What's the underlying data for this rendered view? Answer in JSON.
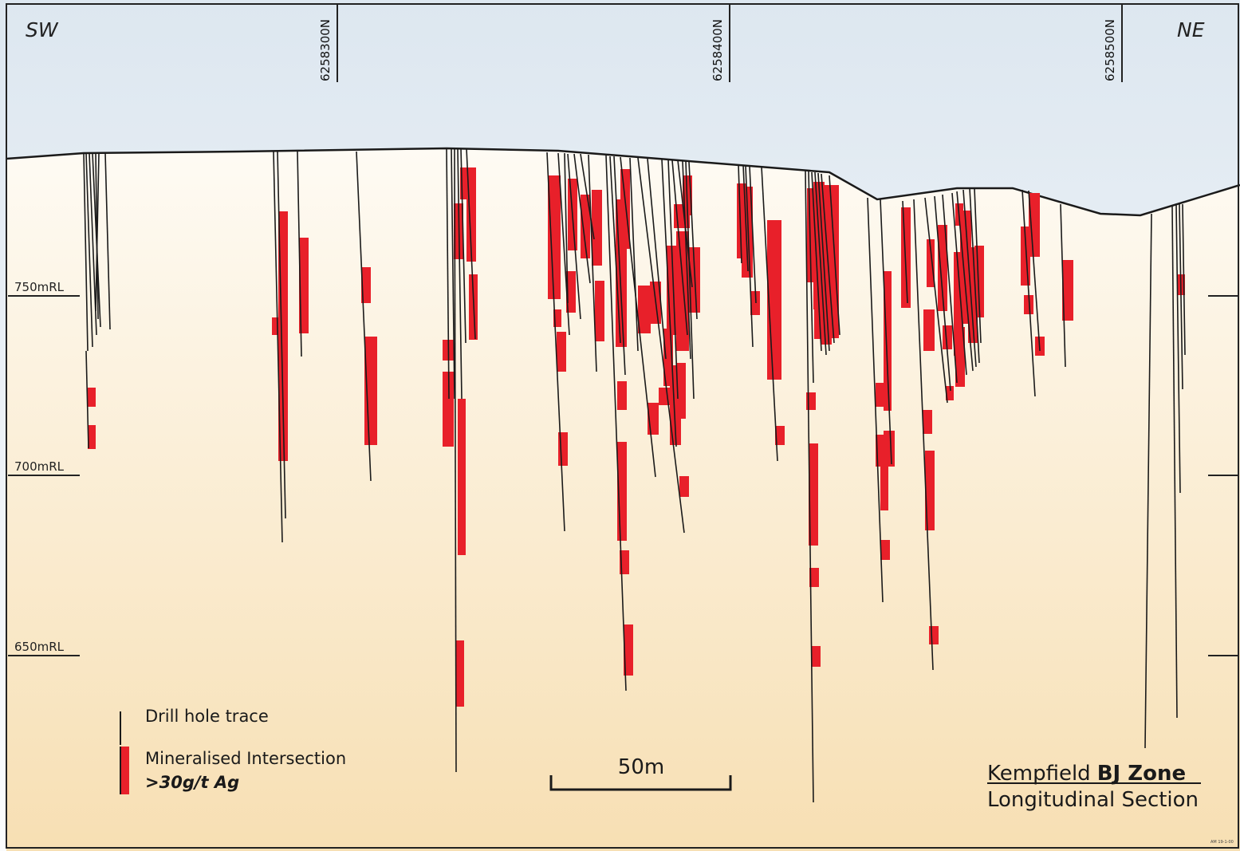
{
  "orientation": {
    "left": "SW",
    "right": "NE"
  },
  "northings": [
    "6258300N",
    "6258400N",
    "6258500N"
  ],
  "rl_labels": [
    "750mRL",
    "700mRL",
    "650mRL"
  ],
  "legend": {
    "trace_label": "Drill hole trace",
    "intersection_label": "Mineralised Intersection",
    "intersection_threshold": ">30g/t Ag",
    "intersection_color": "#e8202a"
  },
  "scale_bar": {
    "label": "50m"
  },
  "title": {
    "project": "Kempfield",
    "zone": "BJ Zone",
    "subtitle": "Longitudinal Section"
  },
  "drawing_ref": "AM 19-1-00",
  "colors": {
    "sky_top": "#dde7f0",
    "ground_top": "#fdfaf3",
    "ground_bottom": "#f7dfb5",
    "trace": "#1a1a1a",
    "intersection": "#e8202a"
  }
}
